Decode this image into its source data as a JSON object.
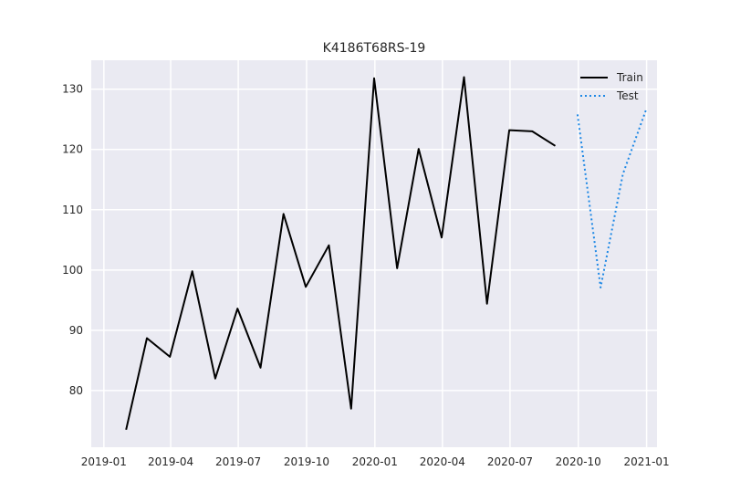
{
  "chart_data": {
    "type": "line",
    "title": "K4186T68RS-19",
    "xlabel": "",
    "ylabel": "",
    "x_axis": {
      "kind": "date",
      "range": [
        "2018-12-15",
        "2021-01-15"
      ],
      "ticks": [
        {
          "date": "2019-01-01",
          "label": "2019-01"
        },
        {
          "date": "2019-04-01",
          "label": "2019-04"
        },
        {
          "date": "2019-07-01",
          "label": "2019-07"
        },
        {
          "date": "2019-10-01",
          "label": "2019-10"
        },
        {
          "date": "2020-01-01",
          "label": "2020-01"
        },
        {
          "date": "2020-04-01",
          "label": "2020-04"
        },
        {
          "date": "2020-07-01",
          "label": "2020-07"
        },
        {
          "date": "2020-10-01",
          "label": "2020-10"
        },
        {
          "date": "2021-01-01",
          "label": "2021-01"
        }
      ]
    },
    "y_axis": {
      "range": [
        70.6,
        134.8
      ],
      "ticks": [
        {
          "value": 80,
          "label": "80"
        },
        {
          "value": 90,
          "label": "90"
        },
        {
          "value": 100,
          "label": "100"
        },
        {
          "value": 110,
          "label": "110"
        },
        {
          "value": 120,
          "label": "120"
        },
        {
          "value": 130,
          "label": "130"
        }
      ]
    },
    "grid": true,
    "legend_position": "top-right",
    "series": [
      {
        "name": "Train",
        "color": "#000000",
        "style": "solid",
        "points": [
          {
            "x": "2019-01-31",
            "y": 73.5
          },
          {
            "x": "2019-02-28",
            "y": 88.7
          },
          {
            "x": "2019-03-31",
            "y": 85.6
          },
          {
            "x": "2019-04-30",
            "y": 99.8
          },
          {
            "x": "2019-05-31",
            "y": 82.0
          },
          {
            "x": "2019-06-30",
            "y": 93.6
          },
          {
            "x": "2019-07-31",
            "y": 83.8
          },
          {
            "x": "2019-08-31",
            "y": 109.3
          },
          {
            "x": "2019-09-30",
            "y": 97.2
          },
          {
            "x": "2019-10-31",
            "y": 104.1
          },
          {
            "x": "2019-11-30",
            "y": 77.0
          },
          {
            "x": "2019-12-31",
            "y": 131.8
          },
          {
            "x": "2020-01-31",
            "y": 100.3
          },
          {
            "x": "2020-02-29",
            "y": 120.1
          },
          {
            "x": "2020-03-31",
            "y": 105.4
          },
          {
            "x": "2020-04-30",
            "y": 132.0
          },
          {
            "x": "2020-05-31",
            "y": 94.4
          },
          {
            "x": "2020-06-30",
            "y": 123.2
          },
          {
            "x": "2020-07-31",
            "y": 123.0
          },
          {
            "x": "2020-08-31",
            "y": 120.6
          }
        ]
      },
      {
        "name": "Test",
        "color": "#1e88e5",
        "style": "dotted",
        "points": [
          {
            "x": "2020-09-30",
            "y": 125.8
          },
          {
            "x": "2020-10-31",
            "y": 97.1
          },
          {
            "x": "2020-11-30",
            "y": 115.9
          },
          {
            "x": "2020-12-31",
            "y": 126.5
          }
        ]
      }
    ]
  }
}
